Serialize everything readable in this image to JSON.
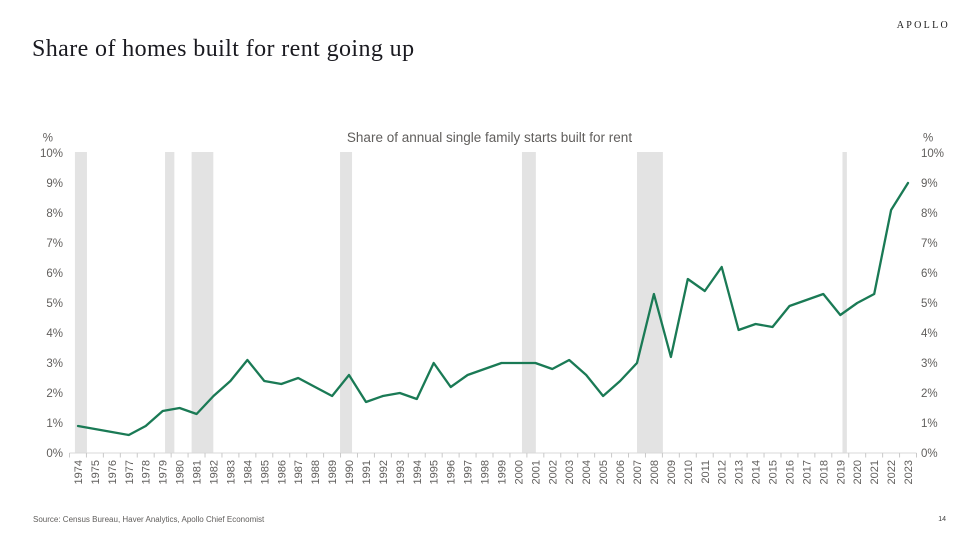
{
  "page": {
    "logo": "APOLLO",
    "title": "Share of homes built for rent going up",
    "source": "Source: Census Bureau, Haver Analytics, Apollo Chief Economist",
    "page_number": "14"
  },
  "chart_data": {
    "type": "line",
    "title": "Share of annual single family starts built for rent",
    "y_axis_unit": "%",
    "ylim": [
      0,
      10
    ],
    "y_ticks": [
      "0%",
      "1%",
      "2%",
      "3%",
      "4%",
      "5%",
      "6%",
      "7%",
      "8%",
      "9%",
      "10%"
    ],
    "grid": false,
    "legend_position": "none",
    "dual_y_axis": true,
    "line_color": "#1a7a55",
    "recession_band_color": "#e3e3e3",
    "recession_bands": [
      [
        1973.82,
        1974.53
      ],
      [
        1979.14,
        1979.69
      ],
      [
        1980.71,
        1981.99
      ],
      [
        1989.47,
        1990.18
      ],
      [
        2000.21,
        2001.03
      ],
      [
        2007.0,
        2008.53
      ],
      [
        2019.13,
        2019.39
      ]
    ],
    "series": [
      {
        "name": "Share of annual single family starts built for rent",
        "x": [
          1974,
          1975,
          1976,
          1977,
          1978,
          1979,
          1980,
          1981,
          1982,
          1983,
          1984,
          1985,
          1986,
          1987,
          1988,
          1989,
          1990,
          1991,
          1992,
          1993,
          1994,
          1995,
          1996,
          1997,
          1998,
          1999,
          2000,
          2001,
          2002,
          2003,
          2004,
          2005,
          2006,
          2007,
          2008,
          2009,
          2010,
          2011,
          2012,
          2013,
          2014,
          2015,
          2016,
          2017,
          2018,
          2019,
          2020,
          2021,
          2022,
          2023
        ],
        "values": [
          0.9,
          0.8,
          0.7,
          0.6,
          0.9,
          1.4,
          1.5,
          1.3,
          1.9,
          2.4,
          3.1,
          2.4,
          2.3,
          2.5,
          2.2,
          1.9,
          2.6,
          1.7,
          1.9,
          2.0,
          1.8,
          3.0,
          2.2,
          2.6,
          2.8,
          3.0,
          3.0,
          3.0,
          2.8,
          3.1,
          2.6,
          1.9,
          2.4,
          3.0,
          5.3,
          3.2,
          5.8,
          5.4,
          6.2,
          4.1,
          4.3,
          4.2,
          4.9,
          5.1,
          5.3,
          4.6,
          5.0,
          5.3,
          8.1,
          9.0
        ]
      }
    ]
  }
}
